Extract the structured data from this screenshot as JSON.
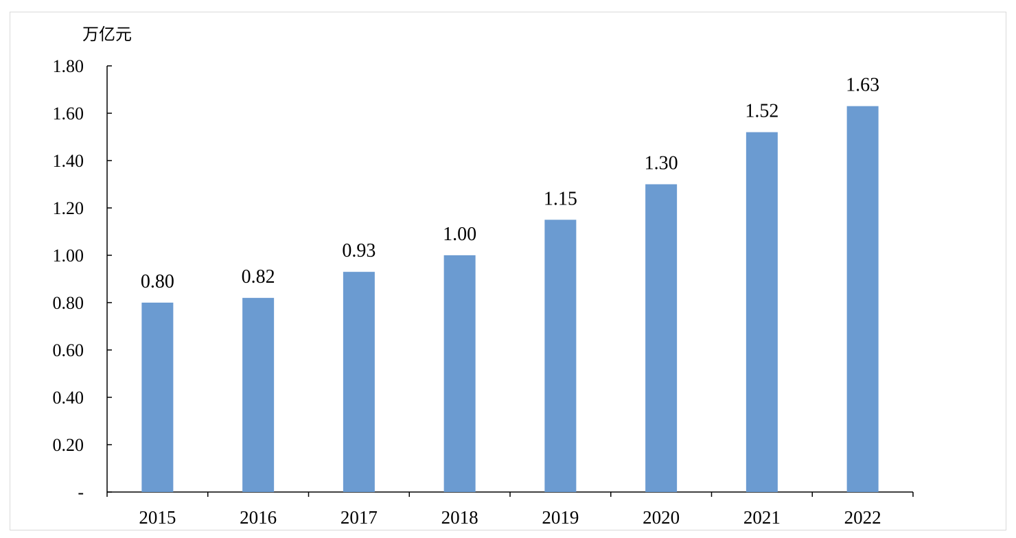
{
  "chart_data": {
    "type": "bar",
    "title": "",
    "unit_label": "万亿元",
    "categories": [
      "2015",
      "2016",
      "2017",
      "2018",
      "2019",
      "2020",
      "2021",
      "2022"
    ],
    "values": [
      0.8,
      0.82,
      0.93,
      1.0,
      1.15,
      1.3,
      1.52,
      1.63
    ],
    "value_labels": [
      "0.80",
      "0.82",
      "0.93",
      "1.00",
      "1.15",
      "1.30",
      "1.52",
      "1.63"
    ],
    "yticks": [
      0,
      0.2,
      0.4,
      0.6,
      0.8,
      1.0,
      1.2,
      1.4,
      1.6,
      1.8
    ],
    "ytick_labels": [
      "-",
      "0.20",
      "0.40",
      "0.60",
      "0.80",
      "1.00",
      "1.20",
      "1.40",
      "1.60",
      "1.80"
    ],
    "ylim": [
      0,
      1.8
    ],
    "grid": false,
    "bar_color": "#6b9bd1",
    "legend": "none"
  }
}
